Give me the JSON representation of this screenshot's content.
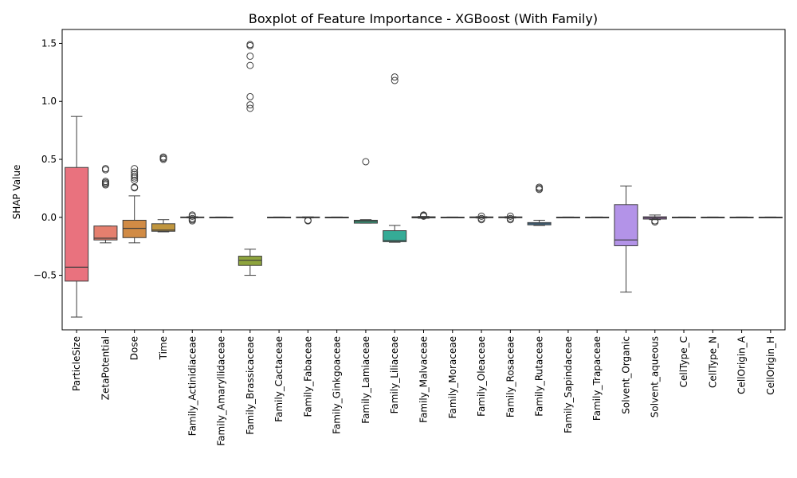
{
  "chart_data": {
    "type": "boxplot",
    "title": "Boxplot of Feature Importance - XGBoost (With Family)",
    "xlabel": "",
    "ylabel": "SHAP Value",
    "ylim": [
      -0.97,
      1.62
    ],
    "yticks": [
      -0.5,
      0.0,
      0.5,
      1.0,
      1.5
    ],
    "ytick_labels": [
      "−0.5",
      "0.0",
      "0.5",
      "1.0",
      "1.5"
    ],
    "grid": false,
    "legend": "none",
    "categories": [
      "ParticleSize",
      "ZetaPotential",
      "Dose",
      "Time",
      "Family_Actinidiaceae",
      "Family_Amaryllidaceae",
      "Family_Brassicaceae",
      "Family_Cactaceae",
      "Family_Fabaceae",
      "Family_Ginkgoaceae",
      "Family_Lamiaceae",
      "Family_Liliaceae",
      "Family_Malvaceae",
      "Family_Moraceae",
      "Family_Oleaceae",
      "Family_Rosaceae",
      "Family_Rutaceae",
      "Family_Sapindaceae",
      "Family_Trapaceae",
      "Solvent_Organic",
      "Solvent_aqueous",
      "CellType_C",
      "CellType_N",
      "CellOrigin_A",
      "CellOrigin_H"
    ],
    "colors": [
      "#e9727e",
      "#e57f6e",
      "#d18b45",
      "#c0963f",
      "#a89d43",
      "#9aa33f",
      "#8ea43d",
      "#6fac45",
      "#48b04f",
      "#3ab16d",
      "#36ae87",
      "#35ab96",
      "#36aaa3",
      "#37a7b0",
      "#39a5bd",
      "#3ba2cc",
      "#479ad9",
      "#7b8ee7",
      "#a080e5",
      "#b393e8",
      "#c77de6",
      "#db73d6",
      "#e66fc5",
      "#ea72b2",
      "#ea719d"
    ],
    "boxes": [
      {
        "q1": -0.55,
        "median": -0.43,
        "q3": 0.43,
        "whislo": -0.86,
        "whishi": 0.87,
        "fliers": []
      },
      {
        "q1": -0.195,
        "median": -0.18,
        "q3": -0.075,
        "whislo": -0.22,
        "whishi": -0.075,
        "fliers": [
          0.28,
          0.29,
          0.3,
          0.31,
          0.41,
          0.42
        ]
      },
      {
        "q1": -0.175,
        "median": -0.095,
        "q3": -0.025,
        "whislo": -0.22,
        "whishi": 0.185,
        "fliers": [
          0.255,
          0.26,
          0.32,
          0.34,
          0.355,
          0.37,
          0.39,
          0.42
        ]
      },
      {
        "q1": -0.12,
        "median": -0.11,
        "q3": -0.055,
        "whislo": -0.125,
        "whishi": -0.02,
        "fliers": [
          0.5,
          0.51,
          0.52
        ]
      },
      {
        "q1": -0.003,
        "median": 0.0,
        "q3": 0.003,
        "whislo": -0.005,
        "whishi": 0.005,
        "fliers": [
          -0.03,
          -0.02,
          -0.01,
          0.01,
          0.02
        ]
      },
      {
        "q1": -0.002,
        "median": 0.0,
        "q3": 0.002,
        "whislo": -0.003,
        "whishi": 0.003,
        "fliers": []
      },
      {
        "q1": -0.415,
        "median": -0.37,
        "q3": -0.335,
        "whislo": -0.5,
        "whishi": -0.275,
        "fliers": [
          0.94,
          0.97,
          1.04,
          1.31,
          1.39,
          1.48,
          1.49
        ]
      },
      {
        "q1": -0.002,
        "median": 0.0,
        "q3": 0.002,
        "whislo": -0.003,
        "whishi": 0.003,
        "fliers": []
      },
      {
        "q1": -0.003,
        "median": 0.0,
        "q3": 0.003,
        "whislo": -0.005,
        "whishi": 0.004,
        "fliers": [
          -0.03,
          -0.025
        ]
      },
      {
        "q1": -0.002,
        "median": 0.0,
        "q3": 0.002,
        "whislo": -0.003,
        "whishi": 0.003,
        "fliers": []
      },
      {
        "q1": -0.05,
        "median": -0.035,
        "q3": -0.025,
        "whislo": -0.05,
        "whishi": -0.02,
        "fliers": [
          0.48
        ]
      },
      {
        "q1": -0.21,
        "median": -0.2,
        "q3": -0.115,
        "whislo": -0.215,
        "whishi": -0.07,
        "fliers": [
          1.18,
          1.21
        ]
      },
      {
        "q1": -0.005,
        "median": 0.0,
        "q3": 0.005,
        "whislo": -0.008,
        "whishi": 0.008,
        "fliers": [
          0.01,
          0.015,
          0.02
        ]
      },
      {
        "q1": -0.002,
        "median": 0.0,
        "q3": 0.002,
        "whislo": -0.003,
        "whishi": 0.003,
        "fliers": []
      },
      {
        "q1": -0.004,
        "median": 0.0,
        "q3": 0.004,
        "whislo": -0.006,
        "whishi": 0.006,
        "fliers": [
          -0.02,
          -0.01,
          0.01
        ]
      },
      {
        "q1": -0.004,
        "median": 0.0,
        "q3": 0.004,
        "whislo": -0.006,
        "whishi": 0.006,
        "fliers": [
          -0.02,
          -0.01,
          0.01
        ]
      },
      {
        "q1": -0.065,
        "median": -0.055,
        "q3": -0.045,
        "whislo": -0.07,
        "whishi": -0.025,
        "fliers": [
          0.24,
          0.25,
          0.26
        ]
      },
      {
        "q1": -0.002,
        "median": 0.0,
        "q3": 0.002,
        "whislo": -0.003,
        "whishi": 0.003,
        "fliers": []
      },
      {
        "q1": -0.002,
        "median": 0.0,
        "q3": 0.002,
        "whislo": -0.003,
        "whishi": 0.003,
        "fliers": []
      },
      {
        "q1": -0.245,
        "median": -0.195,
        "q3": 0.11,
        "whislo": -0.645,
        "whishi": 0.27,
        "fliers": []
      },
      {
        "q1": -0.015,
        "median": -0.005,
        "q3": 0.005,
        "whislo": -0.02,
        "whishi": 0.02,
        "fliers": [
          -0.04,
          -0.03
        ]
      },
      {
        "q1": -0.002,
        "median": 0.0,
        "q3": 0.002,
        "whislo": -0.003,
        "whishi": 0.003,
        "fliers": []
      },
      {
        "q1": -0.002,
        "median": 0.0,
        "q3": 0.002,
        "whislo": -0.003,
        "whishi": 0.003,
        "fliers": []
      },
      {
        "q1": -0.002,
        "median": 0.0,
        "q3": 0.002,
        "whislo": -0.003,
        "whishi": 0.003,
        "fliers": []
      },
      {
        "q1": -0.002,
        "median": 0.0,
        "q3": 0.002,
        "whislo": -0.003,
        "whishi": 0.003,
        "fliers": []
      }
    ]
  }
}
